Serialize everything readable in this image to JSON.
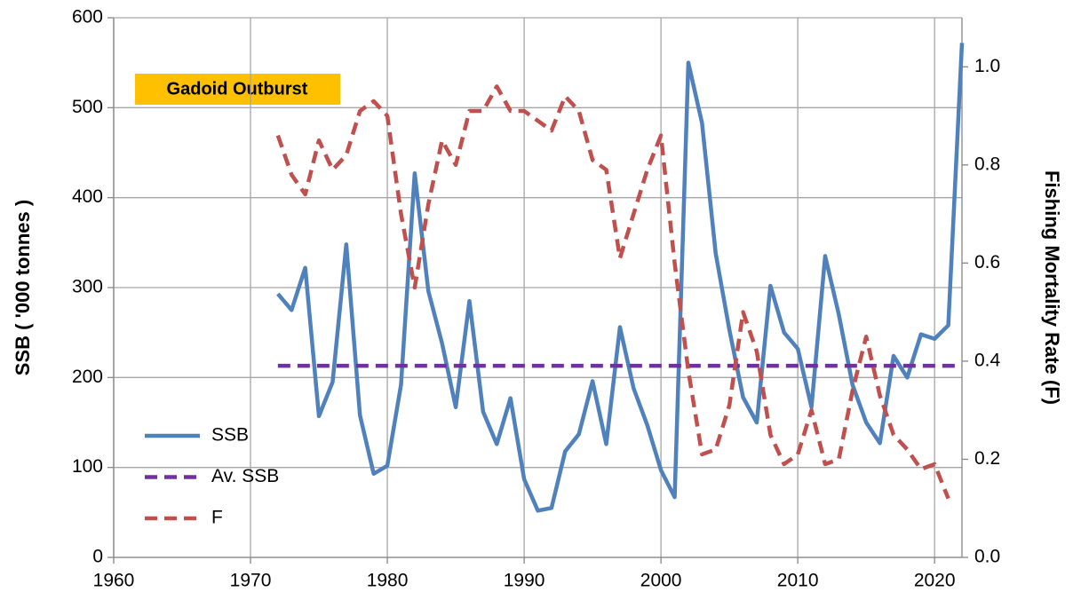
{
  "chart_data": {
    "type": "line",
    "annotation": "Gadoid Outburst",
    "y_label": "SSB ( '000 tonnes )",
    "y2_label": "Fishing Mortality Rate (F)",
    "x": [
      1972,
      1973,
      1974,
      1975,
      1976,
      1977,
      1978,
      1979,
      1980,
      1981,
      1982,
      1983,
      1984,
      1985,
      1986,
      1987,
      1988,
      1989,
      1990,
      1991,
      1992,
      1993,
      1994,
      1995,
      1996,
      1997,
      1998,
      1999,
      2000,
      2001,
      2002,
      2003,
      2004,
      2005,
      2006,
      2007,
      2008,
      2009,
      2010,
      2011,
      2012,
      2013,
      2014,
      2015,
      2016,
      2017,
      2018,
      2019,
      2020,
      2021,
      2022
    ],
    "series": [
      {
        "name": "SSB",
        "color": "#4f81bd",
        "dashed": false,
        "axis": "y",
        "values": [
          293,
          275,
          322,
          157,
          195,
          348,
          158,
          93,
          102,
          192,
          427,
          296,
          238,
          167,
          285,
          162,
          126,
          177,
          87,
          52,
          55,
          118,
          137,
          196,
          126,
          256,
          188,
          147,
          97,
          67,
          550,
          483,
          338,
          253,
          178,
          150,
          302,
          250,
          232,
          167,
          335,
          270,
          192,
          150,
          127,
          224,
          200,
          248,
          243,
          258,
          572
        ]
      },
      {
        "name": "Av. SSB",
        "color": "#7030a0",
        "dashed": true,
        "axis": "y",
        "values": [
          213,
          213,
          213,
          213,
          213,
          213,
          213,
          213,
          213,
          213,
          213,
          213,
          213,
          213,
          213,
          213,
          213,
          213,
          213,
          213,
          213,
          213,
          213,
          213,
          213,
          213,
          213,
          213,
          213,
          213,
          213,
          213,
          213,
          213,
          213,
          213,
          213,
          213,
          213,
          213,
          213,
          213,
          213,
          213,
          213,
          213,
          213,
          213,
          213,
          213,
          213
        ]
      },
      {
        "name": "F",
        "color": "#c0504d",
        "dashed": true,
        "axis": "y2",
        "values": [
          0.86,
          0.78,
          0.74,
          0.85,
          0.79,
          0.82,
          0.91,
          0.93,
          0.9,
          0.7,
          0.55,
          0.72,
          0.85,
          0.8,
          0.91,
          0.91,
          0.96,
          0.91,
          0.91,
          0.89,
          0.87,
          0.94,
          0.91,
          0.81,
          0.79,
          0.61,
          0.7,
          0.79,
          0.86,
          0.6,
          0.38,
          0.21,
          0.22,
          0.31,
          0.5,
          0.42,
          0.25,
          0.19,
          0.21,
          0.3,
          0.19,
          0.2,
          0.34,
          0.45,
          0.33,
          0.25,
          0.22,
          0.18,
          0.19,
          0.12,
          null
        ]
      }
    ],
    "xlim": [
      1960,
      2022
    ],
    "xticks": [
      1960,
      1970,
      1980,
      1990,
      2000,
      2010,
      2020
    ],
    "ylim": [
      0,
      600
    ],
    "yticks": [
      0,
      100,
      200,
      300,
      400,
      500,
      600
    ],
    "y2lim": [
      0,
      1.1
    ],
    "y2ticks": [
      {
        "value": 0,
        "label": "0.0"
      },
      0.2,
      0.4,
      0.6,
      0.8,
      {
        "value": 1,
        "label": "1.0"
      }
    ],
    "grid": true
  }
}
